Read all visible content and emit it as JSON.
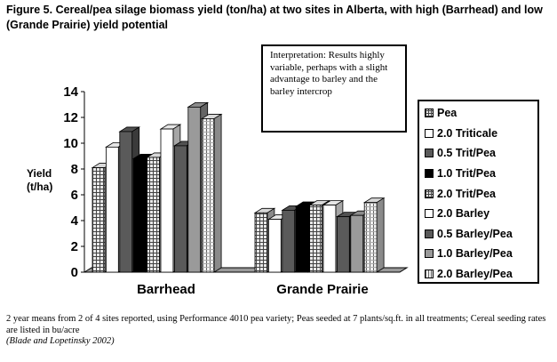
{
  "figure": {
    "title": "Figure 5.  Cereal/pea silage biomass yield (ton/ha) at two sites in Alberta, with high (Barrhead) and low (Grande Prairie) yield potential",
    "interpretation": "Interpretation:  Results highly variable, perhaps with a slight advantage to barley and the barley intercrop",
    "footnote": "2 year means from 2 of 4 sites reported, using Performance 4010 pea variety; Peas seeded at 7 plants/sq.ft. in all treatments; Cereal seeding rates are listed in bu/acre",
    "citation": "(Blade and Lopetinsky 2002)"
  },
  "chart_data": {
    "type": "bar",
    "title": "Figure 5.  Cereal/pea silage biomass yield (ton/ha) at two sites in Alberta, with high (Barrhead) and low (Grande Prairie) yield potential",
    "ylabel_line1": "Yield",
    "ylabel_line2": "(t/ha)",
    "xlabel": "",
    "ylim": [
      0,
      14
    ],
    "yticks": [
      "0",
      "2",
      "4",
      "6",
      "8",
      "10",
      "12",
      "14"
    ],
    "categories": [
      "Barrhead",
      "Grande Prairie"
    ],
    "grid": false,
    "legend_position": "right",
    "series": [
      {
        "name": "Pea",
        "values": [
          8.1,
          4.6
        ],
        "pattern": "grid-dark",
        "color": "#c8c8c8"
      },
      {
        "name": "2.0 Triticale",
        "values": [
          9.7,
          4.1
        ],
        "pattern": "solid",
        "color": "#ffffff"
      },
      {
        "name": "0.5 Trit/Pea",
        "values": [
          10.9,
          4.8
        ],
        "pattern": "solid",
        "color": "#5a5a5a"
      },
      {
        "name": "1.0 Trit/Pea",
        "values": [
          8.8,
          5.1
        ],
        "pattern": "solid",
        "color": "#000000"
      },
      {
        "name": "2.0 Trit/Pea",
        "values": [
          8.9,
          5.2
        ],
        "pattern": "grid-dark",
        "color": "#d0d0d0"
      },
      {
        "name": "2.0 Barley",
        "values": [
          11.1,
          5.2
        ],
        "pattern": "solid",
        "color": "#ffffff"
      },
      {
        "name": "0.5 Barley/Pea",
        "values": [
          9.8,
          4.3
        ],
        "pattern": "solid",
        "color": "#5a5a5a"
      },
      {
        "name": "1.0 Barley/Pea",
        "values": [
          12.8,
          4.4
        ],
        "pattern": "solid",
        "color": "#9a9a9a"
      },
      {
        "name": "2.0 Barley/Pea",
        "values": [
          11.9,
          5.4
        ],
        "pattern": "grid-light",
        "color": "#e0e0e0"
      }
    ]
  }
}
